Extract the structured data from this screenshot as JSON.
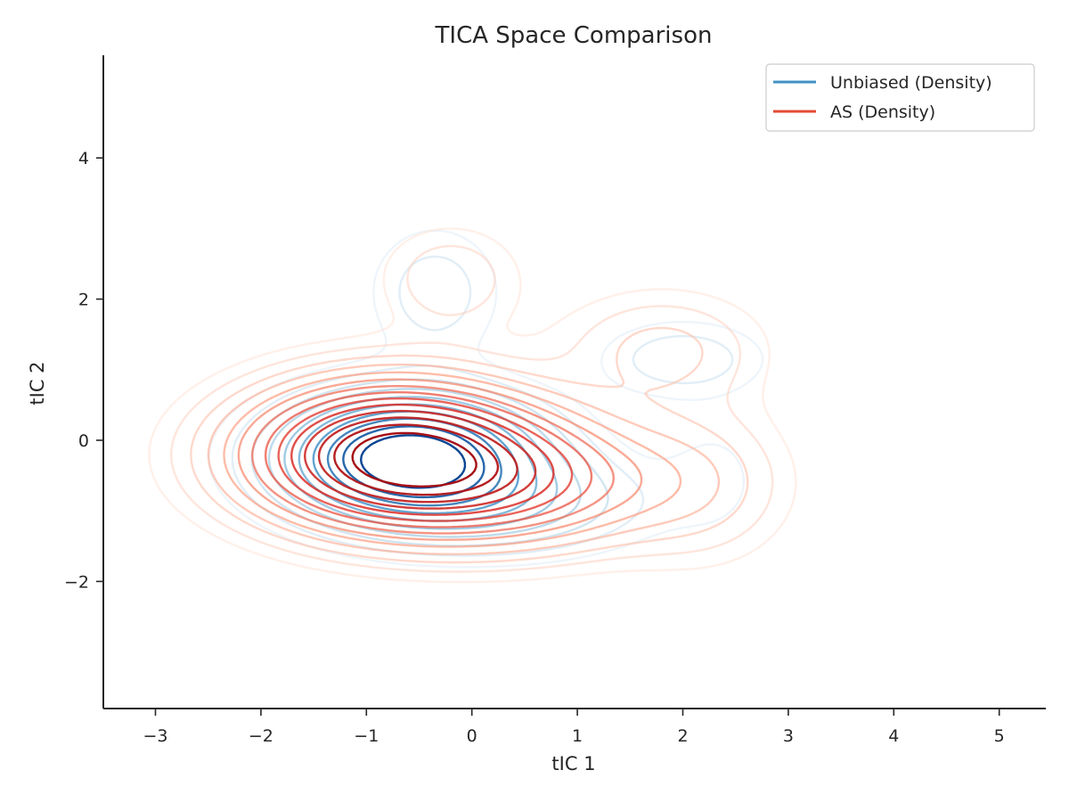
{
  "chart_data": {
    "type": "contour",
    "title": "TICA Space Comparison",
    "xlabel": "tIC 1",
    "ylabel": "tIC 2",
    "xlim": [
      -3.5,
      5.4
    ],
    "ylim": [
      -3.8,
      5.4
    ],
    "xticks": [
      -3,
      -2,
      -1,
      0,
      1,
      2,
      3,
      4,
      5
    ],
    "yticks": [
      -2,
      0,
      2,
      4
    ],
    "xtick_labels": [
      "−3",
      "−2",
      "−1",
      "0",
      "1",
      "2",
      "3",
      "4",
      "5"
    ],
    "ytick_labels": [
      "−2",
      "0",
      "2",
      "4"
    ],
    "grid": false,
    "legend_position": "top-right",
    "series": [
      {
        "name": "Unbiased (Density)",
        "color": "#4292c6",
        "colormap": "Blues",
        "components": [
          {
            "w": 1.0,
            "mx": -0.6,
            "my": -0.25,
            "sx": 0.75,
            "sy": 0.55
          },
          {
            "w": 0.22,
            "mx": 0.35,
            "my": -0.9,
            "sx": 0.85,
            "sy": 0.45
          },
          {
            "w": 0.12,
            "mx": -0.35,
            "my": 2.1,
            "sx": 0.4,
            "sy": 0.6
          },
          {
            "w": 0.13,
            "mx": 2.0,
            "my": 1.15,
            "sx": 0.5,
            "sy": 0.35
          },
          {
            "w": 0.05,
            "mx": 2.3,
            "my": -0.5,
            "sx": 0.35,
            "sy": 0.6
          }
        ],
        "levels": 10
      },
      {
        "name": "AS (Density)",
        "color": "#e34a33",
        "colormap": "Reds",
        "components": [
          {
            "w": 1.0,
            "mx": -0.75,
            "my": -0.2,
            "sx": 0.9,
            "sy": 0.65
          },
          {
            "w": 0.4,
            "mx": 0.45,
            "my": -0.6,
            "sx": 0.95,
            "sy": 0.6
          },
          {
            "w": 0.1,
            "mx": -0.2,
            "my": 2.3,
            "sx": 0.45,
            "sy": 0.5
          },
          {
            "w": 0.12,
            "mx": 1.8,
            "my": 1.3,
            "sx": 0.65,
            "sy": 0.55
          },
          {
            "w": 0.1,
            "mx": 2.2,
            "my": -0.6,
            "sx": 0.55,
            "sy": 0.75
          }
        ],
        "levels": 14
      }
    ]
  }
}
